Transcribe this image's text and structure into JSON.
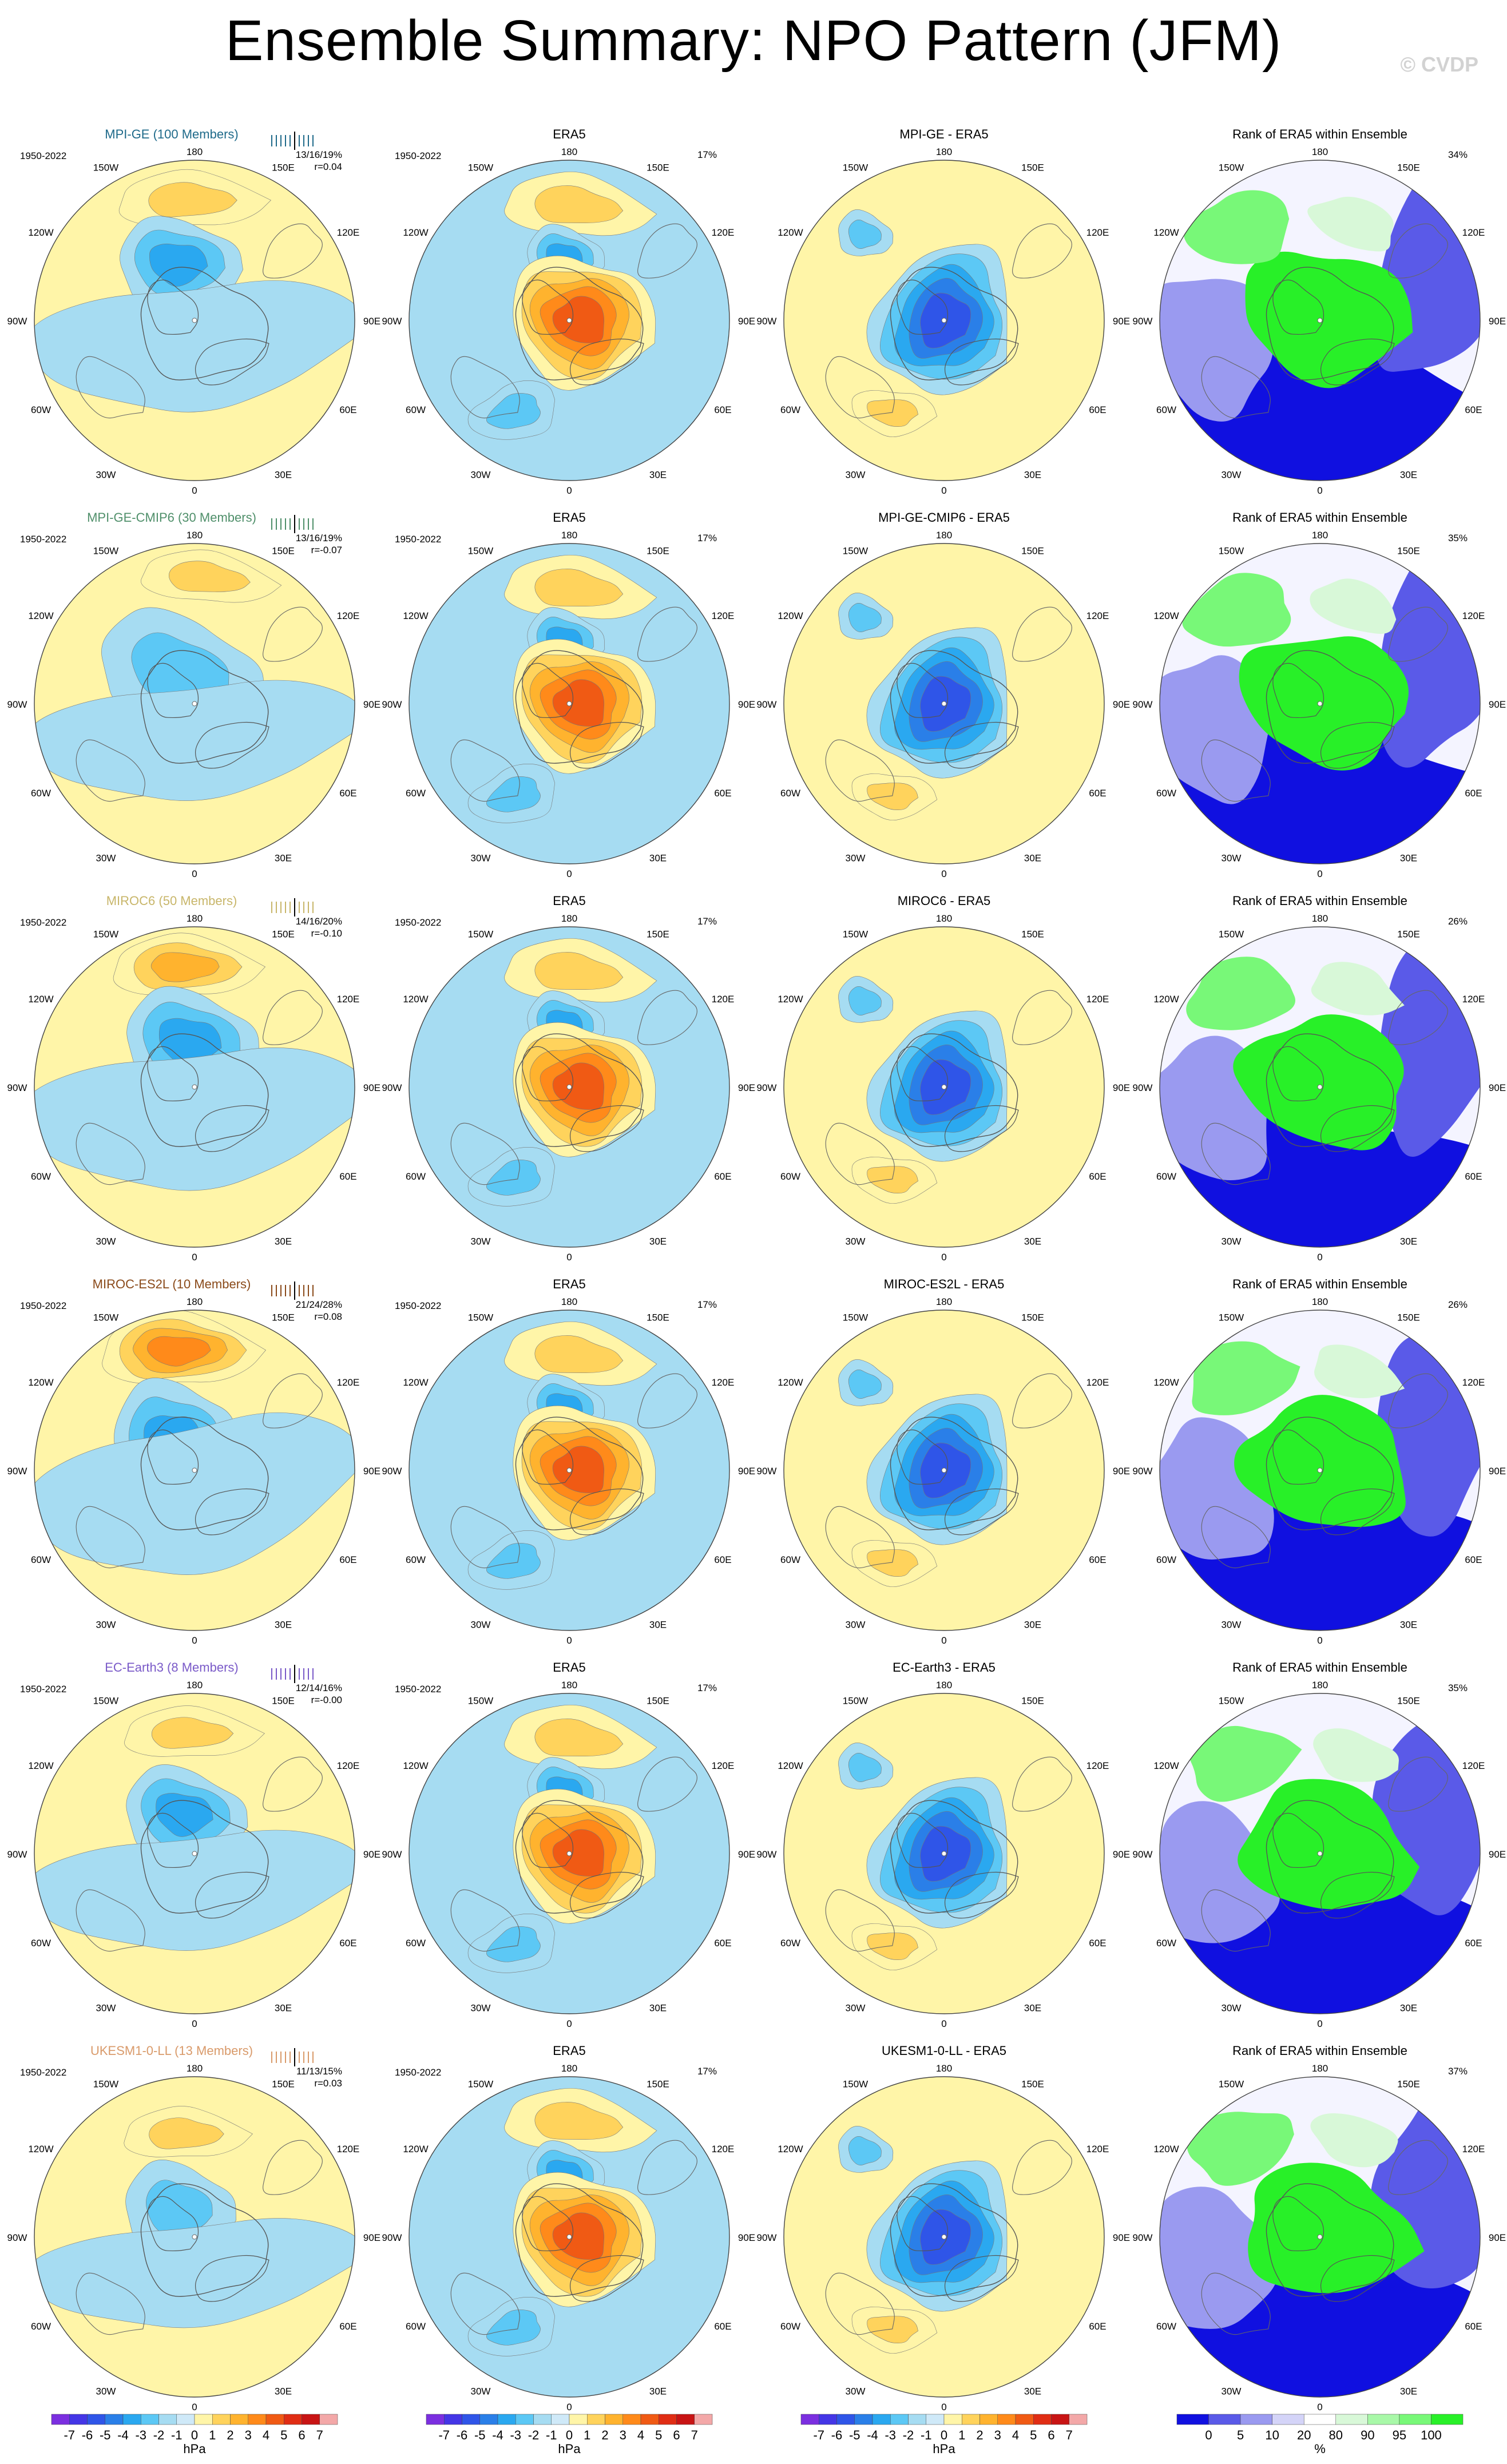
{
  "title": "Ensemble Summary: NPO Pattern (JFM)",
  "watermark": "© CVDP",
  "period": "1950-2022",
  "lon_labels": [
    "180",
    "150E",
    "120E",
    "90E",
    "60E",
    "30E",
    "0",
    "30W",
    "60W",
    "90W",
    "120W",
    "150W"
  ],
  "era5_title": "ERA5",
  "era5_pct": "17%",
  "rank_title": "Rank of ERA5 within Ensemble",
  "models": [
    {
      "title": "MPI-GE (100 Members)",
      "color": "#1f6a8a",
      "stats": "13/16/19%",
      "r": "r=0.04",
      "diff_title": "MPI-GE - ERA5",
      "rank_pct": "34%"
    },
    {
      "title": "MPI-GE-CMIP6 (30 Members)",
      "color": "#4f8f6a",
      "stats": "13/16/19%",
      "r": "r=-0.07",
      "diff_title": "MPI-GE-CMIP6 - ERA5",
      "rank_pct": "35%"
    },
    {
      "title": "MIROC6 (50 Members)",
      "color": "#c8b66a",
      "stats": "14/16/20%",
      "r": "r=-0.10",
      "diff_title": "MIROC6 - ERA5",
      "rank_pct": "26%"
    },
    {
      "title": "MIROC-ES2L (10 Members)",
      "color": "#8a4a1a",
      "stats": "21/24/28%",
      "r": "r=0.08",
      "diff_title": "MIROC-ES2L - ERA5",
      "rank_pct": "26%"
    },
    {
      "title": "EC-Earth3 (8 Members)",
      "color": "#7a5ac8",
      "stats": "12/14/16%",
      "r": "r=-0.00",
      "diff_title": "EC-Earth3 - ERA5",
      "rank_pct": "35%"
    },
    {
      "title": "UKESM1-0-LL (13 Members)",
      "color": "#d99a6a",
      "stats": "11/13/15%",
      "r": "r=0.03",
      "diff_title": "UKESM1-0-LL - ERA5",
      "rank_pct": "37%"
    }
  ],
  "colorbar": {
    "labels": [
      "-7",
      "-6",
      "-5",
      "-4",
      "-3",
      "-2",
      "-1",
      "0",
      "1",
      "2",
      "3",
      "4",
      "5",
      "6",
      "7"
    ],
    "unit": "hPa",
    "colors": [
      "#7b2fe0",
      "#4436e6",
      "#2f55e8",
      "#2a7fe8",
      "#2aa8f0",
      "#5cc8f5",
      "#a6dcf2",
      "#cfe9f8",
      "#fff5a8",
      "#ffd35c",
      "#ffb32e",
      "#ff8a1a",
      "#f05a14",
      "#e02d14",
      "#c81414",
      "#f3a8a8"
    ]
  },
  "rank_colorbar": {
    "labels": [
      "0",
      "5",
      "10",
      "20",
      "80",
      "90",
      "95",
      "100"
    ],
    "unit": "%",
    "colors": [
      "#1010e0",
      "#5a5ae8",
      "#9a9af0",
      "#d4d4f8",
      "#ffffff",
      "#d8f8d8",
      "#a8f8a8",
      "#78f878",
      "#28f028"
    ]
  }
}
